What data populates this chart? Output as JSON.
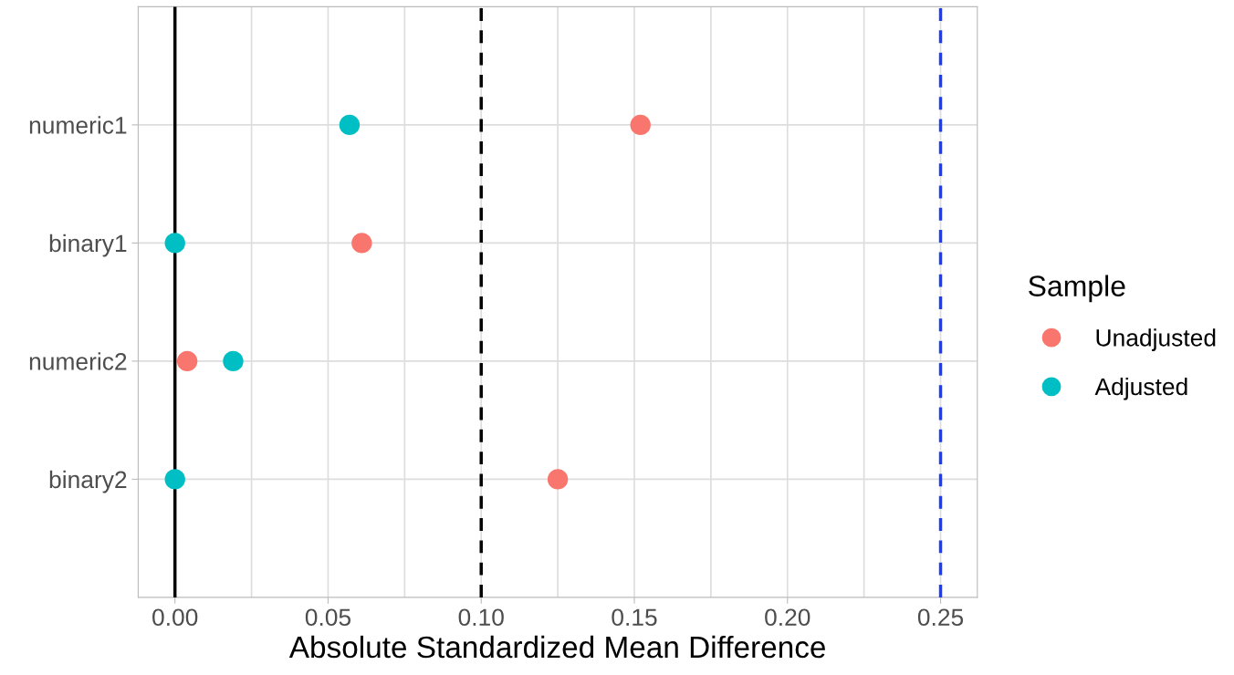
{
  "chart_data": {
    "type": "scatter",
    "orientation": "horizontal",
    "xlabel": "Absolute Standardized Mean Difference",
    "legend_title": "Sample",
    "categories": [
      "numeric1",
      "binary1",
      "numeric2",
      "binary2"
    ],
    "series": [
      {
        "name": "Unadjusted",
        "color": "#f8766d",
        "values": [
          0.152,
          0.061,
          0.004,
          0.125
        ]
      },
      {
        "name": "Adjusted",
        "color": "#00bfc4",
        "values": [
          0.057,
          0.0,
          0.019,
          0.0
        ]
      }
    ],
    "xlim": [
      -0.012,
      0.262
    ],
    "xticks": [
      {
        "value": 0,
        "label": "0.00"
      },
      {
        "value": 0.025,
        "label": null
      },
      {
        "value": 0.05,
        "label": "0.05"
      },
      {
        "value": 0.075,
        "label": null
      },
      {
        "value": 0.1,
        "label": "0.10"
      },
      {
        "value": 0.125,
        "label": null
      },
      {
        "value": 0.15,
        "label": "0.15"
      },
      {
        "value": 0.175,
        "label": null
      },
      {
        "value": 0.2,
        "label": "0.20"
      },
      {
        "value": 0.225,
        "label": null
      },
      {
        "value": 0.25,
        "label": "0.25"
      }
    ],
    "ref_lines": [
      {
        "axis": "x",
        "value": 0,
        "color": "#000000",
        "line_style": "solid"
      },
      {
        "axis": "x",
        "value": 0.1,
        "color": "#000000",
        "line_style": "dashed"
      },
      {
        "axis": "x",
        "value": 0.25,
        "color": "#1a3cff",
        "line_style": "dashed"
      }
    ],
    "grid": true,
    "legend": "right",
    "marker": "circle"
  }
}
